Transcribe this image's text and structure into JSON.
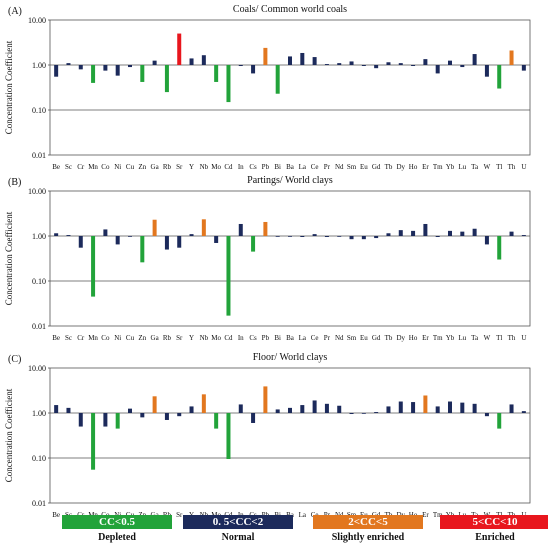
{
  "colors": {
    "depleted": "#22a33a",
    "normal": "#1c2a5b",
    "slightly_enriched": "#e2771f",
    "enriched": "#e8161d"
  },
  "elements": [
    "Be",
    "Sc",
    "Cr",
    "Mn",
    "Co",
    "Ni",
    "Cu",
    "Zn",
    "Ga",
    "Rb",
    "Sr",
    "Y",
    "Nb",
    "Mo",
    "Cd",
    "In",
    "Cs",
    "Pb",
    "Bi",
    "Ba",
    "La",
    "Ce",
    "Pr",
    "Nd",
    "Sm",
    "Eu",
    "Gd",
    "Tb",
    "Dy",
    "Ho",
    "Er",
    "Tm",
    "Yb",
    "Lu",
    "Ta",
    "W",
    "Tl",
    "Th",
    "U"
  ],
  "chart_data": [
    {
      "type": "bar",
      "panel_label": "(A)",
      "title": "Coals/ Common world coals",
      "ylabel": "Concentration  Coefficient",
      "yscale": "log",
      "ylim": [
        0.01,
        10
      ],
      "ytick_labels": [
        "10.00",
        "1.00",
        "0.10",
        "0.01"
      ],
      "reference_lines": [
        1.0,
        0.1
      ],
      "categories": [
        "Be",
        "Sc",
        "Cr",
        "Mn",
        "Co",
        "Ni",
        "Cu",
        "Zn",
        "Ga",
        "Rb",
        "Sr",
        "Y",
        "Nb",
        "Mo",
        "Cd",
        "In",
        "Cs",
        "Pb",
        "Bi",
        "Ba",
        "La",
        "Ce",
        "Pr",
        "Nd",
        "Sm",
        "Eu",
        "Gd",
        "Tb",
        "Dy",
        "Ho",
        "Er",
        "Tm",
        "Yb",
        "Lu",
        "Ta",
        "W",
        "Tl",
        "Th",
        "U"
      ],
      "values": [
        0.55,
        1.1,
        0.8,
        0.4,
        0.75,
        0.58,
        0.9,
        0.42,
        1.25,
        0.25,
        5.0,
        1.4,
        1.65,
        0.42,
        0.15,
        0.95,
        0.65,
        2.4,
        0.23,
        1.55,
        1.85,
        1.5,
        1.05,
        1.1,
        1.2,
        0.95,
        0.85,
        1.15,
        1.1,
        0.95,
        1.35,
        0.65,
        1.25,
        0.9,
        1.75,
        0.55,
        0.3,
        2.1,
        0.75
      ]
    },
    {
      "type": "bar",
      "panel_label": "(B)",
      "title": "Partings/ World clays",
      "ylabel": "Concentration  Coefficient",
      "yscale": "log",
      "ylim": [
        0.01,
        10
      ],
      "ytick_labels": [
        "10.00",
        "1.00",
        "0.10",
        "0.01"
      ],
      "reference_lines": [
        1.0,
        0.1
      ],
      "categories": [
        "Be",
        "Sc",
        "Cr",
        "Mn",
        "Co",
        "Ni",
        "Cu",
        "Zn",
        "Ga",
        "Rb",
        "Sr",
        "Y",
        "Nb",
        "Mo",
        "Cd",
        "In",
        "Cs",
        "Pb",
        "Bi",
        "Ba",
        "La",
        "Ce",
        "Pr",
        "Nd",
        "Sm",
        "Eu",
        "Gd",
        "Tb",
        "Dy",
        "Ho",
        "Er",
        "Tm",
        "Yb",
        "Lu",
        "Ta",
        "W",
        "Tl",
        "Th",
        "U"
      ],
      "values": [
        1.15,
        1.05,
        0.55,
        0.045,
        1.4,
        0.65,
        1.0,
        0.26,
        2.3,
        0.5,
        0.55,
        1.1,
        2.35,
        0.7,
        0.017,
        1.85,
        0.45,
        2.05,
        1.0,
        1.0,
        0.95,
        1.1,
        0.95,
        1.0,
        0.85,
        0.85,
        0.9,
        1.15,
        1.35,
        1.3,
        1.85,
        0.95,
        1.3,
        1.25,
        1.45,
        0.65,
        0.3,
        1.25,
        1.05
      ]
    },
    {
      "type": "bar",
      "panel_label": "(C)",
      "title": "Floor/ World clays",
      "ylabel": "Concentration  Coefficient",
      "yscale": "log",
      "ylim": [
        0.01,
        10
      ],
      "ytick_labels": [
        "10.00",
        "1.00",
        "0.10",
        "0.01"
      ],
      "reference_lines": [
        1.0,
        0.1
      ],
      "categories": [
        "Be",
        "Sc",
        "Cr",
        "Mn",
        "Co",
        "Ni",
        "Cu",
        "Zn",
        "Ga",
        "Rb",
        "Sr",
        "Y",
        "Nb",
        "Mo",
        "Cd",
        "In",
        "Cs",
        "Pb",
        "Bi",
        "Ba",
        "La",
        "Ce",
        "Pr",
        "Nd",
        "Sm",
        "Eu",
        "Gd",
        "Tb",
        "Dy",
        "Ho",
        "Er",
        "Tm",
        "Yb",
        "Lu",
        "Ta",
        "W",
        "Tl",
        "Th",
        "U"
      ],
      "values": [
        1.5,
        1.3,
        0.5,
        0.055,
        0.5,
        0.45,
        1.25,
        0.8,
        2.35,
        0.7,
        0.85,
        1.4,
        2.6,
        0.45,
        0.095,
        1.55,
        0.6,
        3.9,
        1.2,
        1.3,
        1.5,
        1.9,
        1.6,
        1.45,
        0.95,
        1.0,
        1.05,
        1.4,
        1.8,
        1.75,
        2.45,
        1.4,
        1.8,
        1.7,
        1.6,
        0.85,
        0.45,
        1.55,
        1.1
      ]
    }
  ],
  "legend": [
    {
      "range": "CC<0.5",
      "label": "Depleted",
      "color_key": "depleted"
    },
    {
      "range": "0. 5<CC<2",
      "label": "Normal",
      "color_key": "normal"
    },
    {
      "range": "2<CC<5",
      "label": "Slightly enriched",
      "color_key": "slightly_enriched"
    },
    {
      "range": "5<CC<10",
      "label": "Enriched",
      "color_key": "enriched"
    }
  ]
}
